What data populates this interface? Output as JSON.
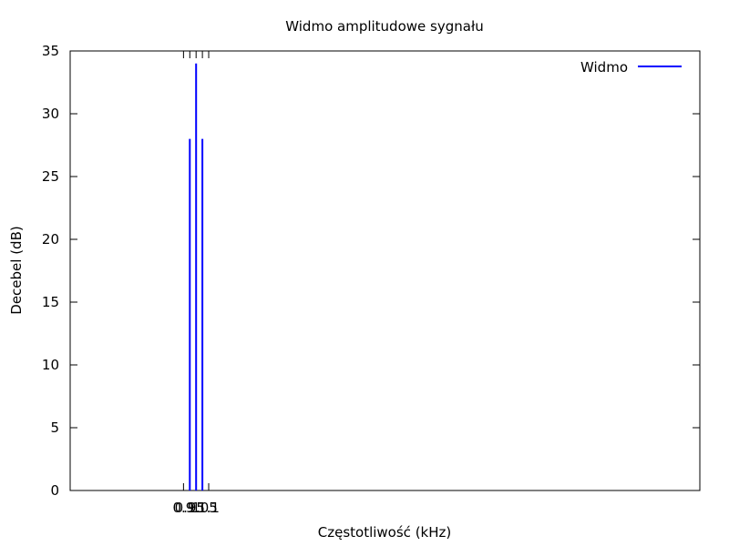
{
  "chart_data": {
    "type": "line",
    "title": "Widmo amplitudowe sygnału",
    "xlabel": "Częstotliwość (kHz)",
    "ylabel": "Decebel (dB)",
    "xlim": [
      0.0,
      5.0
    ],
    "ylim": [
      0,
      35
    ],
    "y_ticks": [
      "0",
      "5",
      "10",
      "15",
      "20",
      "25",
      "30",
      "35"
    ],
    "x_ticks": [
      {
        "value": 0.9,
        "label": "0.9"
      },
      {
        "value": 0.95,
        "label": "0.95"
      },
      {
        "value": 1.0,
        "label": "1"
      },
      {
        "value": 1.05,
        "label": "1.05"
      },
      {
        "value": 1.1,
        "label": "1.1"
      }
    ],
    "grid": false,
    "legend_position": "top-right",
    "series": [
      {
        "name": "Widmo",
        "color": "#0000ff",
        "style": "impulses",
        "points": [
          {
            "x": 0.95,
            "y": 28
          },
          {
            "x": 1.0,
            "y": 34
          },
          {
            "x": 1.05,
            "y": 28
          }
        ]
      }
    ]
  }
}
